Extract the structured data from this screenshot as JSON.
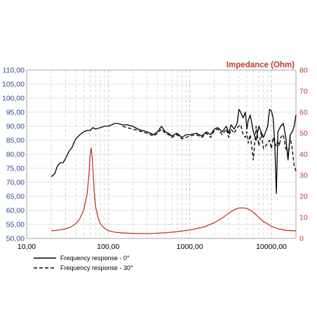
{
  "chart_data": {
    "type": "line",
    "x_scale": "log",
    "xlim": [
      10,
      20000
    ],
    "ylim": [
      50,
      110
    ],
    "y2lim": [
      0,
      80
    ],
    "y2label": "Impedance (Ohm)",
    "x_ticks": [
      "10,00",
      "100,00",
      "1000,00",
      "10000,00"
    ],
    "y_ticks": [
      "50,00",
      "55,00",
      "60,00",
      "65,00",
      "70,00",
      "75,00",
      "80,00",
      "85,00",
      "90,00",
      "95,00",
      "100,00",
      "105,00",
      "110,00"
    ],
    "y2_ticks": [
      "0",
      "10",
      "20",
      "30",
      "40",
      "50",
      "60",
      "70",
      "80"
    ],
    "grid": true,
    "legend_position": "bottom-left",
    "series": [
      {
        "name": "Frequency response - 0°",
        "axis": "left",
        "color": "#000000",
        "style": "solid",
        "x": [
          20,
          22,
          24,
          26,
          28,
          30,
          33,
          36,
          40,
          45,
          50,
          55,
          60,
          65,
          70,
          80,
          90,
          100,
          110,
          120,
          130,
          150,
          170,
          200,
          230,
          260,
          300,
          330,
          360,
          400,
          450,
          500,
          550,
          600,
          700,
          800,
          900,
          1000,
          1200,
          1400,
          1600,
          1800,
          2000,
          2200,
          2500,
          2800,
          3000,
          3200,
          3500,
          3800,
          4000,
          4200,
          4500,
          4800,
          5000,
          5200,
          5500,
          6000,
          6500,
          7000,
          7500,
          8000,
          8500,
          9000,
          9500,
          10000,
          10500,
          11000,
          11500,
          12000,
          12500,
          13000,
          14000,
          15000,
          16000,
          17000,
          18000,
          19000,
          20000
        ],
        "y": [
          72,
          73,
          76,
          77,
          77,
          78.5,
          81,
          82.5,
          85.5,
          87,
          88,
          88.5,
          88.5,
          89.5,
          89,
          89.5,
          90,
          90,
          90.5,
          91,
          91,
          90.5,
          90.5,
          90,
          89,
          88.5,
          88,
          87.5,
          87,
          88,
          90,
          88,
          87.5,
          86.5,
          87.5,
          86,
          87,
          87,
          87.5,
          86.5,
          88,
          87,
          89,
          89.5,
          88,
          90,
          87.5,
          90.5,
          89,
          91,
          96,
          95,
          93,
          95,
          89,
          92,
          94,
          88,
          85,
          90,
          88,
          86,
          88,
          90,
          96,
          95.5,
          93,
          84,
          66,
          88,
          89,
          90,
          91,
          86,
          78,
          87,
          88,
          90,
          94
        ]
      },
      {
        "name": "Frequency response - 30°",
        "axis": "left",
        "color": "#000000",
        "style": "dashed",
        "x": [
          150,
          170,
          200,
          230,
          260,
          300,
          330,
          360,
          400,
          450,
          500,
          550,
          600,
          700,
          800,
          900,
          1000,
          1200,
          1400,
          1600,
          1800,
          2000,
          2200,
          2500,
          2800,
          3000,
          3200,
          3500,
          3800,
          4000,
          4200,
          4500,
          4800,
          5000,
          5200,
          5500,
          6000,
          6500,
          7000,
          7500,
          8000,
          8500,
          9000,
          9500,
          10000,
          10500,
          11000,
          11500,
          12000,
          12500,
          13000,
          14000,
          15000,
          16000,
          17000,
          18000,
          19000,
          20000
        ],
        "y": [
          90,
          89.5,
          89,
          88.5,
          88,
          87.5,
          87,
          86.5,
          87.5,
          89,
          87.5,
          87,
          86,
          87,
          85.5,
          86,
          86.5,
          87,
          86,
          87.5,
          86,
          88.5,
          89,
          87,
          89,
          86,
          89,
          87.5,
          89.5,
          90,
          90.5,
          87,
          86,
          88,
          84,
          87,
          78,
          90,
          83,
          88,
          82,
          83,
          84,
          85,
          82,
          86,
          84,
          83,
          85,
          83,
          86,
          87,
          82,
          80,
          86,
          82,
          76,
          74
        ]
      },
      {
        "name": "Impedance",
        "axis": "right",
        "color": "#c0392b",
        "style": "solid",
        "x": [
          20,
          25,
          30,
          35,
          40,
          45,
          50,
          55,
          58,
          60,
          62,
          64,
          66,
          68,
          70,
          75,
          80,
          90,
          100,
          120,
          150,
          200,
          300,
          400,
          500,
          700,
          1000,
          1500,
          2000,
          2500,
          3000,
          3500,
          4000,
          4500,
          5000,
          5500,
          6000,
          7000,
          8000,
          10000,
          12000,
          15000,
          20000
        ],
        "y": [
          3.6,
          4.0,
          4.6,
          5.5,
          7.0,
          9.5,
          13.5,
          21,
          30,
          40,
          43,
          37,
          28,
          20,
          15,
          10,
          7,
          4.8,
          3.7,
          3.0,
          2.6,
          2.4,
          2.3,
          2.5,
          2.7,
          3.2,
          4.0,
          5.5,
          7.5,
          9.7,
          12,
          13.7,
          14.5,
          14.5,
          14.3,
          13.5,
          12.5,
          10,
          8,
          5.8,
          4.6,
          3.9,
          3.6
        ]
      }
    ]
  }
}
